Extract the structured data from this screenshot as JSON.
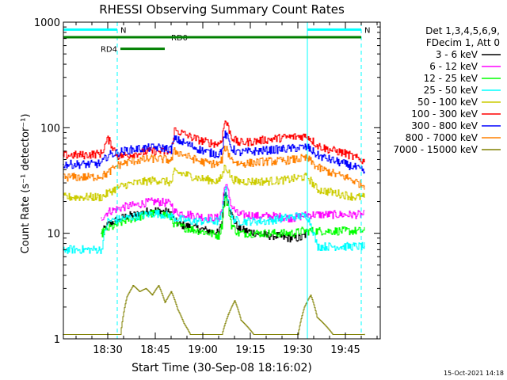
{
  "chart_data": {
    "type": "line",
    "title": "RHESSI Observing Summary Count Rates",
    "xlabel": "Start Time (30-Sep-08 18:16:02)",
    "ylabel": "Count Rate (s⁻¹ detector⁻¹)",
    "yscale": "log",
    "ylim": [
      1,
      1000
    ],
    "xlim_minutes": [
      0,
      100
    ],
    "x_unit": "minutes after 18:16:02",
    "xticks": [
      {
        "minute": 14,
        "label": "18:30"
      },
      {
        "minute": 29,
        "label": "18:45"
      },
      {
        "minute": 44,
        "label": "19:00"
      },
      {
        "minute": 59,
        "label": "19:15"
      },
      {
        "minute": 74,
        "label": "19:30"
      },
      {
        "minute": 89,
        "label": "19:45"
      }
    ],
    "yticks": [
      {
        "value": 1,
        "label": "1"
      },
      {
        "value": 10,
        "label": "10"
      },
      {
        "value": 100,
        "label": "100"
      },
      {
        "value": 1000,
        "label": "1000"
      }
    ],
    "legend_header": [
      "Det 1,3,4,5,6,9,",
      "FDecim 1, Att 0"
    ],
    "legend_position": "right",
    "series": [
      {
        "name": "3 - 6 keV",
        "color": "#000000",
        "baseline": 10.5,
        "x": [
          12,
          14,
          17,
          20,
          23,
          26,
          29,
          32,
          34,
          35,
          37,
          40,
          43,
          46,
          49,
          50,
          51,
          53,
          55,
          58,
          61,
          64,
          67,
          70,
          73,
          75,
          77
        ],
        "y": [
          10,
          12,
          13.5,
          14.5,
          15,
          16,
          16.5,
          16,
          15.5,
          13,
          12,
          11.5,
          11,
          10.5,
          10,
          13,
          25,
          15,
          11,
          10.5,
          10,
          9.5,
          9.5,
          9,
          9,
          9,
          10
        ]
      },
      {
        "name": "6 - 12 keV",
        "color": "#ff00ff",
        "baseline": 15,
        "x": [
          12,
          14,
          17,
          20,
          23,
          26,
          29,
          32,
          34,
          35,
          37,
          40,
          43,
          46,
          49,
          50,
          51,
          53,
          55,
          58,
          61,
          64,
          67,
          70,
          73,
          75,
          77,
          80,
          83,
          86,
          89,
          92,
          95
        ],
        "y": [
          14,
          16,
          17,
          18,
          18.5,
          19.5,
          20,
          19.5,
          19,
          16,
          15.5,
          15,
          14.5,
          14,
          14,
          17,
          30,
          18,
          15,
          15,
          14.5,
          14.5,
          14.5,
          14,
          14,
          14.5,
          15,
          15,
          15,
          15,
          15,
          15,
          15
        ]
      },
      {
        "name": "12 - 25 keV",
        "color": "#00ff00",
        "baseline": 11,
        "x": [
          12,
          14,
          17,
          20,
          23,
          26,
          29,
          32,
          34,
          35,
          37,
          40,
          43,
          46,
          49,
          50,
          51,
          53,
          55,
          58,
          61,
          64,
          67,
          70,
          73,
          75,
          77,
          80,
          83,
          86,
          89,
          92,
          95
        ],
        "y": [
          10,
          11,
          12,
          13.5,
          14,
          15,
          15.5,
          15,
          14,
          12,
          11.5,
          11,
          10.5,
          10,
          9.5,
          12,
          22,
          12,
          10,
          10,
          10,
          10,
          10,
          10,
          10,
          10.5,
          10.5,
          10.5,
          10.5,
          10.5,
          10.5,
          10.5,
          10.5
        ]
      },
      {
        "name": "25 - 50 keV",
        "color": "#00ffff",
        "baseline": 13,
        "x": [
          0,
          3,
          6,
          9,
          12,
          14,
          17,
          20,
          23,
          26,
          29,
          32,
          34,
          35,
          37,
          40,
          43,
          46,
          49,
          50,
          51,
          53,
          55,
          58,
          61,
          64,
          67,
          70,
          73,
          75,
          77,
          80,
          83,
          86,
          89,
          92,
          95
        ],
        "y": [
          7,
          7,
          7,
          7,
          7,
          13,
          13.5,
          14,
          14.5,
          15,
          15.5,
          15,
          14.5,
          14,
          13.5,
          13,
          13,
          13,
          13,
          15,
          27,
          14,
          13,
          13,
          13,
          13,
          13.5,
          14,
          14.5,
          14.5,
          14.5,
          7.5,
          7.5,
          7.5,
          7.5,
          7.5,
          7.5
        ]
      },
      {
        "name": "50 - 100 keV",
        "color": "#cccc00",
        "baseline": 24,
        "x": [
          0,
          3,
          6,
          9,
          12,
          14,
          17,
          20,
          23,
          26,
          29,
          32,
          34,
          35,
          37,
          40,
          43,
          46,
          49,
          50,
          51,
          53,
          55,
          58,
          61,
          64,
          67,
          70,
          73,
          75,
          77,
          80,
          83,
          86,
          89,
          92,
          95
        ],
        "y": [
          22,
          22,
          22,
          22,
          22,
          24,
          27,
          29,
          30,
          31,
          32,
          31,
          30,
          38,
          37,
          35,
          33,
          32,
          31,
          35,
          44,
          33,
          31,
          31,
          31,
          31,
          31.5,
          32,
          33,
          34,
          34,
          26,
          25,
          24,
          23,
          22,
          22
        ]
      },
      {
        "name": "100 - 300 keV",
        "color": "#ff0000",
        "baseline": 60,
        "x": [
          0,
          3,
          6,
          9,
          12,
          14,
          17,
          20,
          23,
          26,
          29,
          32,
          34,
          35,
          37,
          40,
          43,
          46,
          49,
          50,
          51,
          53,
          55,
          58,
          61,
          64,
          67,
          70,
          73,
          75,
          77,
          80,
          83,
          86,
          89,
          92,
          95
        ],
        "y": [
          55,
          55,
          55,
          56,
          57,
          78,
          54,
          55,
          57,
          59,
          60,
          59,
          58,
          95,
          90,
          82,
          76,
          72,
          70,
          80,
          118,
          82,
          72,
          73,
          75,
          77,
          79,
          81,
          82,
          83,
          83,
          68,
          63,
          60,
          57,
          52,
          48
        ]
      },
      {
        "name": "300 - 800 keV",
        "color": "#0000ff",
        "baseline": 45,
        "x": [
          0,
          3,
          6,
          9,
          12,
          14,
          17,
          20,
          23,
          26,
          29,
          32,
          34,
          35,
          37,
          40,
          43,
          46,
          49,
          50,
          51,
          53,
          55,
          58,
          61,
          64,
          67,
          70,
          73,
          75,
          77,
          80,
          83,
          86,
          89,
          92,
          95
        ],
        "y": [
          45,
          45,
          45,
          45,
          46,
          55,
          58,
          61,
          63,
          64,
          65,
          64,
          62,
          78,
          74,
          68,
          62,
          58,
          56,
          62,
          88,
          64,
          58,
          59,
          60,
          61,
          62,
          63,
          64,
          65,
          65,
          55,
          51,
          48,
          45,
          42,
          38
        ]
      },
      {
        "name": "800 - 7000 keV",
        "color": "#ff8000",
        "baseline": 35,
        "x": [
          0,
          3,
          6,
          9,
          12,
          14,
          17,
          20,
          23,
          26,
          29,
          32,
          34,
          35,
          37,
          40,
          43,
          46,
          49,
          50,
          51,
          53,
          55,
          58,
          61,
          64,
          67,
          70,
          73,
          75,
          77,
          80,
          83,
          86,
          89,
          92,
          95
        ],
        "y": [
          34,
          34,
          34,
          34,
          35,
          37,
          44,
          47,
          49,
          50,
          51,
          50,
          49,
          60,
          57,
          52,
          48,
          46,
          45,
          50,
          65,
          50,
          46,
          46,
          47,
          48,
          48,
          49,
          50,
          51,
          51,
          42,
          39,
          36,
          34,
          31,
          28
        ]
      },
      {
        "name": "7000 - 15000 keV",
        "color": "#808000",
        "baseline": 1.5,
        "x": [
          0,
          5,
          10,
          15,
          18,
          20,
          22,
          24,
          26,
          28,
          30,
          32,
          34,
          36,
          38,
          40,
          45,
          50,
          52,
          54,
          56,
          60,
          65,
          70,
          74,
          76,
          78,
          80,
          85,
          90,
          95
        ],
        "y": [
          1.1,
          1.1,
          1.1,
          1.1,
          1.1,
          2.5,
          3.2,
          2.8,
          3.0,
          2.6,
          3.2,
          2.2,
          2.8,
          1.9,
          1.4,
          1.1,
          1.1,
          1.1,
          1.7,
          2.3,
          1.5,
          1.1,
          1.1,
          1.1,
          1.1,
          2.0,
          2.6,
          1.6,
          1.1,
          1.1,
          1.1
        ]
      }
    ],
    "annotations": [
      {
        "label": "N",
        "kind": "night",
        "x_start": 0,
        "x_end": 17,
        "level": 850,
        "color": "#00ffff"
      },
      {
        "label": "N",
        "kind": "night",
        "x_start": 77,
        "x_end": 94,
        "level": 850,
        "color": "#00ffff"
      },
      {
        "label": "RD0",
        "kind": "rate-decimation",
        "x_start": 0,
        "x_end": 33,
        "level": 720,
        "color": "#008000"
      },
      {
        "label": "",
        "kind": "rate-decimation",
        "x_start": 33,
        "x_end": 94,
        "level": 720,
        "color": "#008000"
      },
      {
        "label": "RD4",
        "kind": "rate-decimation",
        "x_start": 18,
        "x_end": 32,
        "level": 560,
        "color": "#008000"
      }
    ],
    "vertical_markers": [
      {
        "minute": 17,
        "style": "dashed",
        "color": "#00ffff"
      },
      {
        "minute": 77,
        "style": "solid",
        "color": "#00ffff"
      },
      {
        "minute": 94,
        "style": "dashed",
        "color": "#00ffff"
      }
    ]
  },
  "footer": {
    "timestamp": "15-Oct-2021 14:18"
  }
}
